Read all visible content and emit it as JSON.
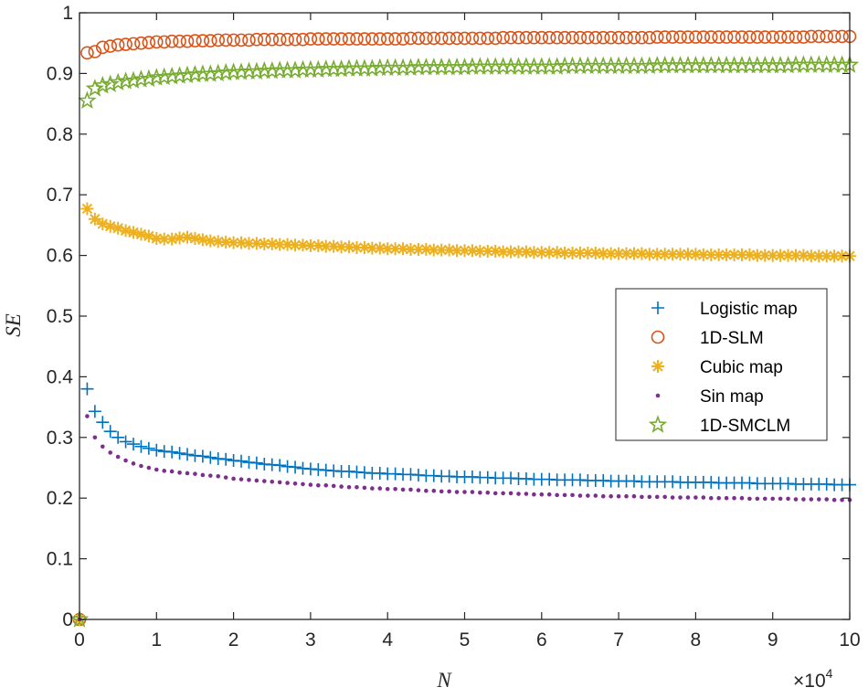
{
  "chart_data": {
    "type": "scatter",
    "xlabel": "N",
    "ylabel": "SE",
    "x_exponent_label": "×10",
    "x_exponent": "4",
    "xlim": [
      0,
      100000
    ],
    "ylim": [
      0,
      1
    ],
    "xticks": [
      0,
      10000,
      20000,
      30000,
      40000,
      50000,
      60000,
      70000,
      80000,
      90000,
      100000
    ],
    "xtick_labels": [
      "0",
      "1",
      "2",
      "3",
      "4",
      "5",
      "6",
      "7",
      "8",
      "9",
      "10"
    ],
    "yticks": [
      0,
      0.1,
      0.2,
      0.3,
      0.4,
      0.5,
      0.6,
      0.7,
      0.8,
      0.9,
      1
    ],
    "ytick_labels": [
      "0",
      "0.1",
      "0.2",
      "0.3",
      "0.4",
      "0.5",
      "0.6",
      "0.7",
      "0.8",
      "0.9",
      "1"
    ],
    "grid": false,
    "legend_placement": "right",
    "x": [
      0,
      1000,
      2000,
      3000,
      4000,
      5000,
      6000,
      7000,
      8000,
      9000,
      10000,
      11000,
      12000,
      13000,
      14000,
      15000,
      16000,
      17000,
      18000,
      19000,
      20000,
      21000,
      22000,
      23000,
      24000,
      25000,
      26000,
      27000,
      28000,
      29000,
      30000,
      31000,
      32000,
      33000,
      34000,
      35000,
      36000,
      37000,
      38000,
      39000,
      40000,
      41000,
      42000,
      43000,
      44000,
      45000,
      46000,
      47000,
      48000,
      49000,
      50000,
      51000,
      52000,
      53000,
      54000,
      55000,
      56000,
      57000,
      58000,
      59000,
      60000,
      61000,
      62000,
      63000,
      64000,
      65000,
      66000,
      67000,
      68000,
      69000,
      70000,
      71000,
      72000,
      73000,
      74000,
      75000,
      76000,
      77000,
      78000,
      79000,
      80000,
      81000,
      82000,
      83000,
      84000,
      85000,
      86000,
      87000,
      88000,
      89000,
      90000,
      91000,
      92000,
      93000,
      94000,
      95000,
      96000,
      97000,
      98000,
      99000,
      100000
    ],
    "series": [
      {
        "name": "Logistic map",
        "marker": "plus",
        "color": "#0072BD",
        "values": [
          0,
          0.38,
          0.343,
          0.325,
          0.31,
          0.3,
          0.293,
          0.289,
          0.285,
          0.282,
          0.279,
          0.277,
          0.276,
          0.274,
          0.272,
          0.27,
          0.269,
          0.267,
          0.265,
          0.264,
          0.262,
          0.261,
          0.259,
          0.258,
          0.256,
          0.255,
          0.254,
          0.252,
          0.251,
          0.249,
          0.248,
          0.247,
          0.246,
          0.245,
          0.244,
          0.244,
          0.243,
          0.242,
          0.241,
          0.241,
          0.24,
          0.24,
          0.239,
          0.239,
          0.238,
          0.237,
          0.237,
          0.236,
          0.236,
          0.235,
          0.235,
          0.235,
          0.234,
          0.234,
          0.233,
          0.233,
          0.233,
          0.232,
          0.232,
          0.231,
          0.231,
          0.231,
          0.23,
          0.23,
          0.23,
          0.23,
          0.229,
          0.229,
          0.229,
          0.228,
          0.228,
          0.228,
          0.228,
          0.227,
          0.227,
          0.227,
          0.227,
          0.227,
          0.226,
          0.226,
          0.226,
          0.226,
          0.226,
          0.225,
          0.225,
          0.225,
          0.225,
          0.225,
          0.224,
          0.224,
          0.224,
          0.224,
          0.224,
          0.223,
          0.223,
          0.223,
          0.223,
          0.223,
          0.222,
          0.222,
          0.222
        ]
      },
      {
        "name": "1D-SLM",
        "marker": "circle",
        "color": "#D95319",
        "values": [
          0,
          0.934,
          0.936,
          0.943,
          0.945,
          0.947,
          0.948,
          0.949,
          0.95,
          0.951,
          0.952,
          0.952,
          0.953,
          0.953,
          0.953,
          0.954,
          0.954,
          0.954,
          0.955,
          0.955,
          0.955,
          0.955,
          0.955,
          0.956,
          0.956,
          0.956,
          0.956,
          0.956,
          0.956,
          0.956,
          0.957,
          0.957,
          0.957,
          0.957,
          0.957,
          0.957,
          0.957,
          0.957,
          0.957,
          0.957,
          0.957,
          0.957,
          0.957,
          0.958,
          0.958,
          0.958,
          0.958,
          0.958,
          0.958,
          0.958,
          0.958,
          0.958,
          0.958,
          0.958,
          0.958,
          0.959,
          0.959,
          0.959,
          0.959,
          0.959,
          0.959,
          0.959,
          0.959,
          0.959,
          0.959,
          0.959,
          0.959,
          0.959,
          0.959,
          0.959,
          0.959,
          0.959,
          0.959,
          0.959,
          0.959,
          0.96,
          0.96,
          0.96,
          0.96,
          0.96,
          0.96,
          0.96,
          0.96,
          0.96,
          0.96,
          0.96,
          0.96,
          0.96,
          0.96,
          0.96,
          0.96,
          0.96,
          0.96,
          0.96,
          0.96,
          0.961,
          0.961,
          0.961,
          0.961,
          0.961,
          0.961
        ]
      },
      {
        "name": "Cubic map",
        "marker": "asterisk",
        "color": "#EDB120",
        "values": [
          0,
          0.677,
          0.66,
          0.652,
          0.648,
          0.645,
          0.641,
          0.638,
          0.635,
          0.632,
          0.628,
          0.627,
          0.627,
          0.629,
          0.63,
          0.628,
          0.626,
          0.624,
          0.623,
          0.622,
          0.621,
          0.621,
          0.62,
          0.62,
          0.619,
          0.619,
          0.618,
          0.618,
          0.617,
          0.617,
          0.616,
          0.616,
          0.615,
          0.615,
          0.614,
          0.614,
          0.613,
          0.613,
          0.612,
          0.612,
          0.611,
          0.611,
          0.611,
          0.61,
          0.61,
          0.61,
          0.609,
          0.609,
          0.609,
          0.608,
          0.608,
          0.608,
          0.607,
          0.607,
          0.607,
          0.606,
          0.606,
          0.606,
          0.606,
          0.605,
          0.605,
          0.605,
          0.605,
          0.604,
          0.604,
          0.604,
          0.604,
          0.604,
          0.603,
          0.603,
          0.603,
          0.603,
          0.603,
          0.603,
          0.602,
          0.602,
          0.602,
          0.602,
          0.602,
          0.602,
          0.602,
          0.601,
          0.601,
          0.601,
          0.601,
          0.601,
          0.601,
          0.601,
          0.6,
          0.6,
          0.6,
          0.6,
          0.6,
          0.6,
          0.6,
          0.599,
          0.599,
          0.599,
          0.599,
          0.599,
          0.599
        ]
      },
      {
        "name": "Sin map",
        "marker": "dot",
        "color": "#7E2F8E",
        "values": [
          0,
          0.335,
          0.3,
          0.285,
          0.275,
          0.268,
          0.262,
          0.257,
          0.253,
          0.25,
          0.247,
          0.245,
          0.244,
          0.242,
          0.241,
          0.24,
          0.238,
          0.237,
          0.236,
          0.234,
          0.232,
          0.231,
          0.23,
          0.229,
          0.228,
          0.227,
          0.226,
          0.225,
          0.224,
          0.223,
          0.222,
          0.221,
          0.221,
          0.22,
          0.219,
          0.218,
          0.218,
          0.217,
          0.216,
          0.216,
          0.215,
          0.215,
          0.214,
          0.214,
          0.213,
          0.212,
          0.212,
          0.211,
          0.211,
          0.21,
          0.21,
          0.21,
          0.209,
          0.209,
          0.208,
          0.208,
          0.208,
          0.207,
          0.207,
          0.206,
          0.206,
          0.206,
          0.205,
          0.205,
          0.205,
          0.204,
          0.204,
          0.204,
          0.203,
          0.203,
          0.203,
          0.203,
          0.203,
          0.202,
          0.202,
          0.202,
          0.202,
          0.201,
          0.201,
          0.201,
          0.201,
          0.201,
          0.2,
          0.2,
          0.2,
          0.2,
          0.2,
          0.199,
          0.199,
          0.199,
          0.199,
          0.199,
          0.199,
          0.198,
          0.198,
          0.198,
          0.198,
          0.198,
          0.197,
          0.197,
          0.197
        ]
      },
      {
        "name": "1D-SMCLM",
        "marker": "pentagram",
        "color": "#77AC30",
        "values": [
          0,
          0.855,
          0.875,
          0.88,
          0.882,
          0.885,
          0.887,
          0.888,
          0.89,
          0.891,
          0.893,
          0.894,
          0.895,
          0.896,
          0.897,
          0.898,
          0.899,
          0.899,
          0.9,
          0.901,
          0.902,
          0.902,
          0.903,
          0.903,
          0.904,
          0.904,
          0.905,
          0.905,
          0.905,
          0.906,
          0.906,
          0.906,
          0.907,
          0.907,
          0.907,
          0.908,
          0.908,
          0.908,
          0.908,
          0.909,
          0.909,
          0.909,
          0.909,
          0.909,
          0.91,
          0.91,
          0.91,
          0.91,
          0.91,
          0.91,
          0.91,
          0.911,
          0.911,
          0.911,
          0.911,
          0.911,
          0.911,
          0.911,
          0.911,
          0.911,
          0.911,
          0.911,
          0.911,
          0.912,
          0.912,
          0.912,
          0.912,
          0.912,
          0.912,
          0.912,
          0.912,
          0.912,
          0.912,
          0.912,
          0.912,
          0.913,
          0.913,
          0.913,
          0.913,
          0.913,
          0.913,
          0.913,
          0.913,
          0.913,
          0.913,
          0.913,
          0.913,
          0.913,
          0.913,
          0.913,
          0.913,
          0.913,
          0.913,
          0.914,
          0.914,
          0.914,
          0.914,
          0.914,
          0.914,
          0.914,
          0.914
        ]
      }
    ]
  }
}
